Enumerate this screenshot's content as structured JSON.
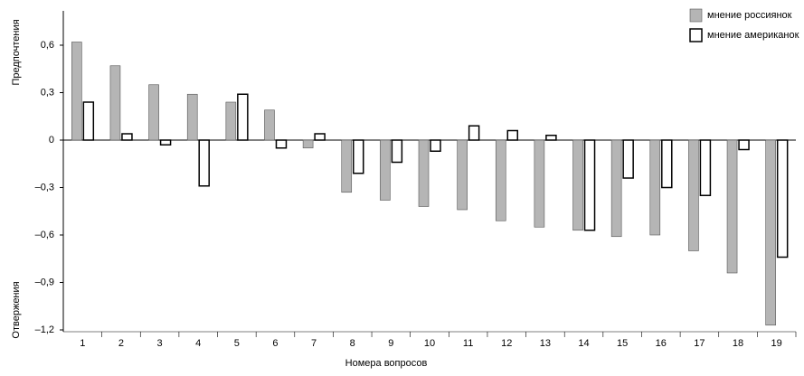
{
  "chart_data": {
    "type": "bar",
    "x_label": "Номера вопросов",
    "annotations": [
      "Предпочтения",
      "Отвержения"
    ],
    "categories": [
      "1",
      "2",
      "3",
      "4",
      "5",
      "6",
      "7",
      "8",
      "9",
      "10",
      "11",
      "12",
      "13",
      "14",
      "15",
      "16",
      "17",
      "18",
      "19"
    ],
    "series": [
      {
        "name": "мнение россиянок",
        "color": "#b5b5b5",
        "values": [
          0.62,
          0.47,
          0.35,
          0.29,
          0.24,
          0.19,
          -0.05,
          -0.33,
          -0.38,
          -0.42,
          -0.44,
          -0.51,
          -0.55,
          -0.57,
          -0.61,
          -0.6,
          -0.7,
          -0.84,
          -1.17
        ]
      },
      {
        "name": "мнение американок",
        "color": "#ffffff",
        "values": [
          0.24,
          0.04,
          -0.03,
          -0.29,
          0.29,
          -0.05,
          0.04,
          -0.21,
          -0.14,
          -0.07,
          0.09,
          0.06,
          0.03,
          -0.57,
          -0.24,
          -0.3,
          -0.35,
          -0.06,
          -0.74
        ]
      }
    ],
    "ylim": [
      -1.2,
      0.8
    ],
    "yticks": [
      {
        "value": 0.6,
        "label": "0,6"
      },
      {
        "value": 0.3,
        "label": "0,3"
      },
      0,
      {
        "value": -0.3,
        "label": "–0,3"
      },
      {
        "value": -0.6,
        "label": "–0,6"
      },
      {
        "value": -0.9,
        "label": "–0,9"
      },
      {
        "value": -1.2,
        "label": "–1,2"
      }
    ],
    "legend": "top-right"
  }
}
